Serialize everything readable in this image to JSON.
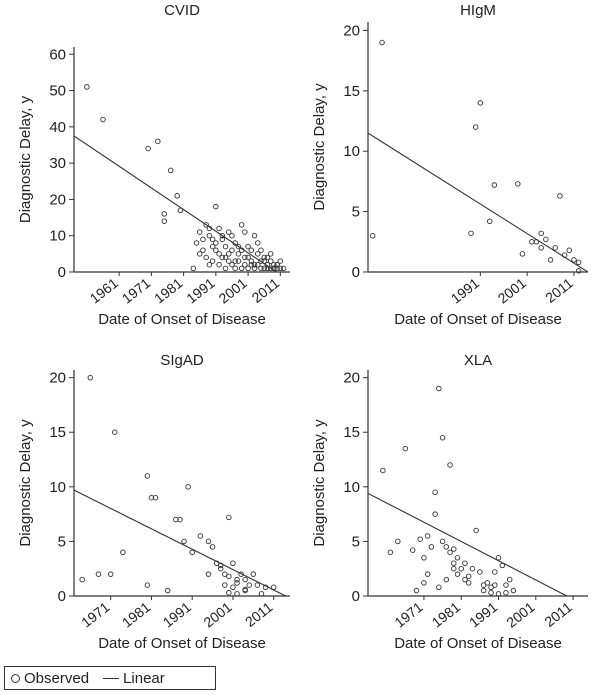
{
  "chart_data": [
    {
      "type": "scatter",
      "title": "CVID",
      "xlabel": "Date of Onset of Disease",
      "ylabel": "Diagnostic Delay, y",
      "xlim": [
        1947,
        2014
      ],
      "ylim": [
        0,
        62
      ],
      "xticks": [
        1961,
        1971,
        1981,
        1991,
        2001,
        2011
      ],
      "yticks": [
        0,
        10,
        20,
        30,
        40,
        50,
        60
      ],
      "series": [
        {
          "kind": "points",
          "x": [
            1951,
            1956,
            1970,
            1973,
            1975,
            1975,
            1977,
            1979,
            1980,
            1984,
            1985,
            1986,
            1986,
            1987,
            1988,
            1988,
            1989,
            1989,
            1990,
            1990,
            1991,
            1991,
            1992,
            1992,
            1993,
            1993,
            1994,
            1994,
            1995,
            1995,
            1996,
            1996,
            1997,
            1997,
            1998,
            1998,
            1999,
            1999,
            2000,
            2000,
            2001,
            2001,
            2002,
            2002,
            2003,
            2003,
            2004,
            2004,
            2005,
            2005,
            2006,
            2006,
            2007,
            2007,
            2008,
            2008,
            2009,
            2009,
            2010,
            2010,
            2011,
            2011,
            1987,
            1989,
            1991,
            1993,
            1995,
            1997,
            1999,
            2001,
            2003,
            2005,
            2007,
            2009,
            1990,
            1996,
            2000,
            2004,
            1992,
            1998,
            2002,
            2006,
            2008,
            1994,
            2010,
            2012
          ],
          "y": [
            51,
            42,
            34,
            36,
            16,
            14,
            28,
            21,
            17,
            1,
            8,
            11,
            5,
            9,
            13,
            4,
            10,
            2,
            7,
            3,
            18,
            6,
            12,
            2,
            9,
            4,
            7,
            1,
            11,
            3,
            6,
            2,
            8,
            1,
            5,
            3,
            13,
            1,
            4,
            2,
            7,
            1,
            3,
            2,
            10,
            1,
            5,
            2,
            3,
            1,
            4,
            1,
            2,
            1,
            3,
            1,
            2,
            1,
            1,
            2,
            3,
            1,
            6,
            12,
            8,
            10,
            5,
            3,
            6,
            4,
            2,
            6,
            4,
            1,
            9,
            10,
            11,
            8,
            5,
            7,
            6,
            3,
            5,
            4,
            2,
            1
          ]
        },
        {
          "kind": "line",
          "x": [
            1947,
            2014
          ],
          "y": [
            37.5,
            -2.5
          ]
        }
      ]
    },
    {
      "type": "scatter",
      "title": "HIgM",
      "xlabel": "Date of Onset of Disease",
      "ylabel": "Diagnostic Delay, y",
      "xlim": [
        1967,
        2014
      ],
      "ylim": [
        0,
        20.7
      ],
      "xticks": [
        1991,
        2001,
        2011
      ],
      "yticks": [
        0,
        5,
        10,
        15,
        20
      ],
      "series": [
        {
          "kind": "points",
          "x": [
            1968,
            1970,
            1989,
            1990,
            1991,
            1993,
            1994,
            1999,
            2000,
            2002,
            2003,
            2004,
            2004,
            2005,
            2006,
            2007,
            2008,
            2009,
            2010,
            2011,
            2012,
            2012
          ],
          "y": [
            3,
            19,
            3.2,
            12,
            14,
            4.2,
            7.2,
            7.3,
            1.5,
            2.5,
            2.5,
            3.2,
            2.0,
            2.7,
            1.0,
            2.0,
            6.3,
            1.4,
            1.8,
            1.0,
            0.8,
            0.1
          ]
        },
        {
          "kind": "line",
          "x": [
            1967,
            2014
          ],
          "y": [
            11.5,
            0
          ]
        }
      ]
    },
    {
      "type": "scatter",
      "title": "SIgAD",
      "xlabel": "Date of Onset of Disease",
      "ylabel": "Diagnostic Delay, y",
      "xlim": [
        1962,
        2015
      ],
      "ylim": [
        0,
        20.7
      ],
      "xticks": [
        1971,
        1981,
        1991,
        2001,
        2011
      ],
      "yticks": [
        0,
        5,
        10,
        15,
        20
      ],
      "series": [
        {
          "kind": "points",
          "x": [
            1964,
            1966,
            1968,
            1971,
            1972,
            1974,
            1980,
            1980,
            1981,
            1982,
            1985,
            1987,
            1988,
            1989,
            1990,
            1991,
            1993,
            1995,
            1995,
            1996,
            1997,
            1998,
            1999,
            1999,
            2000,
            2000,
            2001,
            2001,
            2002,
            2002,
            2003,
            2004,
            2004,
            2005,
            2006,
            2007,
            2008,
            2009,
            2011,
            1998,
            2000,
            2002,
            2004
          ],
          "y": [
            1.5,
            20,
            2,
            2,
            15,
            4,
            1,
            11,
            9,
            9,
            0.5,
            7,
            7,
            5,
            10,
            4,
            5.5,
            5,
            2,
            4.5,
            3,
            2.8,
            2,
            1,
            7.2,
            0.3,
            0.8,
            3,
            1.5,
            0.2,
            2.0,
            1.5,
            0.5,
            1.0,
            2,
            1,
            0.2,
            0.8,
            0.8,
            2.5,
            1.8,
            1.2,
            0.6
          ]
        },
        {
          "kind": "line",
          "x": [
            1962,
            2015
          ],
          "y": [
            9.7,
            -0.2
          ]
        }
      ]
    },
    {
      "type": "scatter",
      "title": "XLA",
      "xlabel": "Date of Onset of Disease",
      "ylabel": "Diagnostic Delay, y",
      "xlim": [
        1956,
        2015
      ],
      "ylim": [
        0,
        20.7
      ],
      "xticks": [
        1971,
        1981,
        1991,
        2001,
        2011
      ],
      "yticks": [
        0,
        5,
        10,
        15,
        20
      ],
      "series": [
        {
          "kind": "points",
          "x": [
            1960,
            1962,
            1964,
            1966,
            1968,
            1969,
            1970,
            1971,
            1971,
            1972,
            1972,
            1973,
            1974,
            1974,
            1975,
            1975,
            1976,
            1977,
            1977,
            1978,
            1978,
            1979,
            1979,
            1980,
            1980,
            1981,
            1982,
            1982,
            1983,
            1984,
            1985,
            1986,
            1987,
            1988,
            1989,
            1990,
            1990,
            1991,
            1992,
            1993,
            1993,
            1994,
            1995,
            1976,
            1979,
            1983,
            1987,
            1989,
            1991
          ],
          "y": [
            11.5,
            4,
            5,
            13.5,
            4.2,
            0.5,
            5.2,
            3.5,
            1.2,
            2.0,
            5.5,
            4.5,
            7.5,
            9.5,
            19,
            0.8,
            14.5,
            4.5,
            1.5,
            4.0,
            12,
            4.3,
            2.5,
            3.5,
            2.0,
            2.5,
            1.5,
            3.0,
            1.2,
            2.5,
            6.0,
            2.2,
            0.5,
            1.2,
            0.3,
            2.2,
            1.0,
            3.5,
            2.8,
            1.0,
            0.3,
            1.5,
            0.5,
            5.0,
            3.0,
            1.8,
            1.0,
            0.8,
            0.2
          ]
        },
        {
          "kind": "line",
          "x": [
            1956,
            2015
          ],
          "y": [
            9.4,
            -1.0
          ]
        }
      ]
    }
  ],
  "legend": {
    "observed_label": "Observed",
    "linear_label": "Linear"
  }
}
